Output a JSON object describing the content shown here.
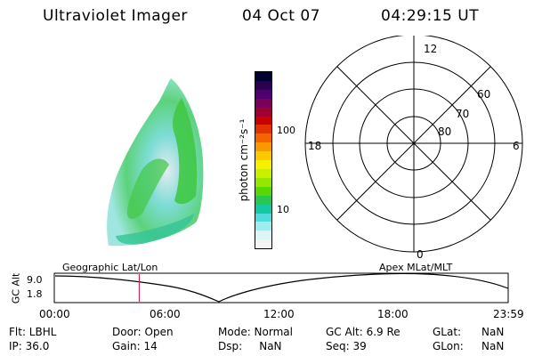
{
  "header": {
    "title": "Ultraviolet Imager",
    "date": "04 Oct 07",
    "time": "04:29:15 UT"
  },
  "colorbar": {
    "label": "photon cm⁻²s⁻¹",
    "ticks": [
      "100",
      "10"
    ],
    "colors": [
      "#000033",
      "#2a0050",
      "#50006e",
      "#7a005a",
      "#a00030",
      "#c80000",
      "#e23000",
      "#f46400",
      "#fa9800",
      "#fdc800",
      "#f4f000",
      "#c8f000",
      "#96e600",
      "#5ad700",
      "#28c850",
      "#14c8a0",
      "#50dcdc",
      "#a0ebeb",
      "#dcf5f5",
      "#f4f4f4"
    ]
  },
  "polar": {
    "mlt_labels": {
      "top": "12",
      "left": "18",
      "right": "6",
      "bottom": "0"
    },
    "lat_labels": [
      "60",
      "70",
      "80"
    ]
  },
  "timeline": {
    "y_label": "GC Alt",
    "y_ticks": [
      "9.0",
      "1.8"
    ],
    "left_label": "Geographic Lat/Lon",
    "right_label": "Apex MLat/MLT",
    "x_ticks": [
      "00:00",
      "06:00",
      "12:00",
      "18:00",
      "23:59"
    ],
    "marker_hour": 4.49,
    "marker_color": "#c8143c"
  },
  "info": {
    "col1": [
      "Flt: LBHL",
      "IP: 36.0"
    ],
    "col2": [
      "Door: Open",
      "Gain: 14"
    ],
    "col3": [
      "Mode: Normal",
      "Dsp:     NaN"
    ],
    "col4": [
      "GC Alt: 6.9 Re",
      "Seq: 39"
    ],
    "col5": [
      "GLat:",
      "GLon:"
    ],
    "col6": [
      "NaN",
      "NaN"
    ]
  }
}
